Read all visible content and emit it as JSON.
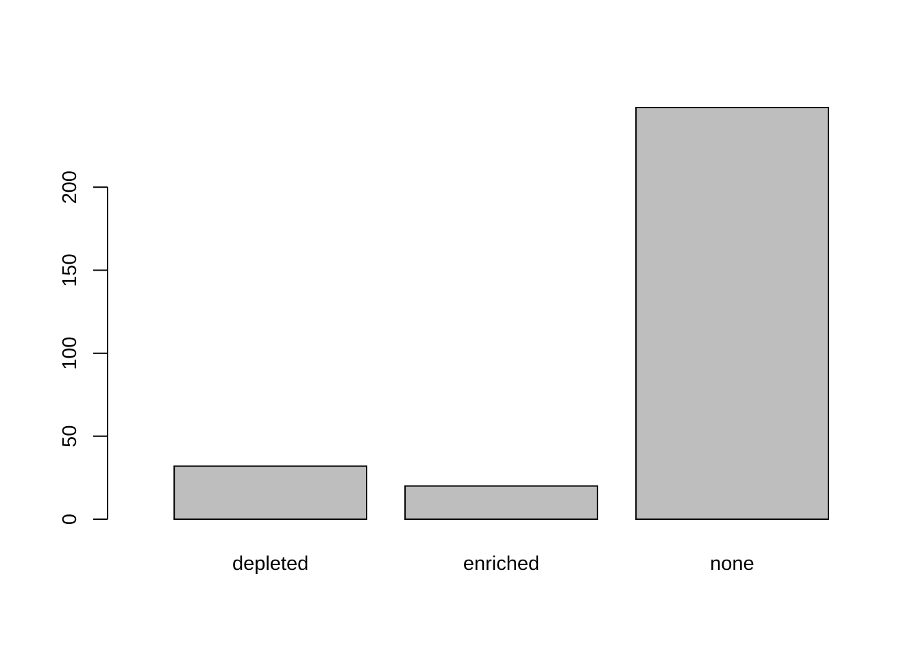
{
  "chart_data": {
    "type": "bar",
    "title": "",
    "xlabel": "",
    "ylabel": "",
    "categories": [
      "depleted",
      "enriched",
      "none"
    ],
    "values": [
      32,
      20,
      248
    ],
    "ylim": [
      0,
      248
    ],
    "y_ticks": [
      0,
      50,
      100,
      150,
      200
    ],
    "y_tick_labels": [
      "0",
      "50",
      "100",
      "150",
      "200"
    ],
    "grid": false,
    "legend": "none",
    "colors": {
      "bar_fill": "#bebebe",
      "bar_stroke": "#000000",
      "axis": "#000000",
      "background": "#ffffff"
    }
  }
}
